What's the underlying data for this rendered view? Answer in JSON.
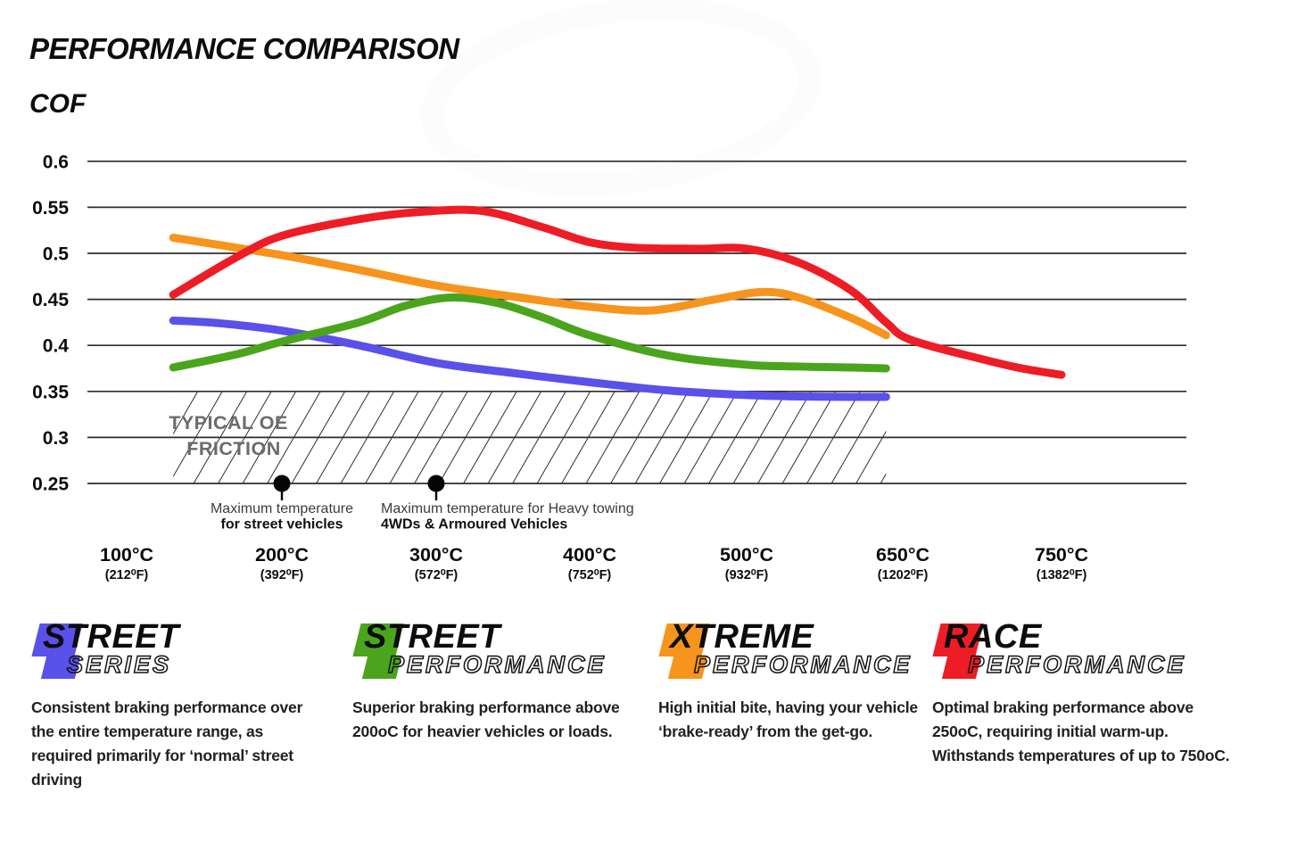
{
  "page": {
    "title": "PERFORMANCE COMPARISON",
    "y_axis_title": "COF"
  },
  "chart_data": {
    "type": "line",
    "title": "PERFORMANCE COMPARISON",
    "ylabel": "COF",
    "ylim": [
      0.25,
      0.6
    ],
    "grid": "horizontal",
    "y_ticks": [
      "0.6",
      "0.55",
      "0.5",
      "0.45",
      "0.4",
      "0.35",
      "0.3",
      "0.25"
    ],
    "y_tick_values": [
      0.6,
      0.55,
      0.5,
      0.45,
      0.4,
      0.35,
      0.3,
      0.25
    ],
    "x_ticks": [
      {
        "t": 100,
        "celsius": "100°C",
        "fahrenheit": "(212⁰F)"
      },
      {
        "t": 200,
        "celsius": "200°C",
        "fahrenheit": "(392⁰F)"
      },
      {
        "t": 300,
        "celsius": "300°C",
        "fahrenheit": "(572⁰F)"
      },
      {
        "t": 400,
        "celsius": "400°C",
        "fahrenheit": "(752⁰F)"
      },
      {
        "t": 500,
        "celsius": "500°C",
        "fahrenheit": "(932⁰F)"
      },
      {
        "t": 650,
        "celsius": "650°C",
        "fahrenheit": "(1202⁰F)"
      },
      {
        "t": 750,
        "celsius": "750°C",
        "fahrenheit": "(1382⁰F)"
      }
    ],
    "series": [
      {
        "name": "Street Series",
        "color": "#5951e9",
        "points": [
          [
            130,
            0.427
          ],
          [
            160,
            0.424
          ],
          [
            200,
            0.416
          ],
          [
            250,
            0.4
          ],
          [
            300,
            0.381
          ],
          [
            350,
            0.37
          ],
          [
            400,
            0.36
          ],
          [
            450,
            0.351
          ],
          [
            500,
            0.346
          ],
          [
            550,
            0.3445
          ],
          [
            600,
            0.344
          ],
          [
            634,
            0.344
          ]
        ]
      },
      {
        "name": "Street Performance",
        "color": "#4aa51c",
        "points": [
          [
            130,
            0.376
          ],
          [
            170,
            0.39
          ],
          [
            200,
            0.404
          ],
          [
            250,
            0.425
          ],
          [
            280,
            0.443
          ],
          [
            310,
            0.452
          ],
          [
            340,
            0.446
          ],
          [
            370,
            0.43
          ],
          [
            400,
            0.411
          ],
          [
            450,
            0.389
          ],
          [
            500,
            0.379
          ],
          [
            550,
            0.377
          ],
          [
            600,
            0.376
          ],
          [
            634,
            0.375
          ]
        ]
      },
      {
        "name": "Xtreme Performance",
        "color": "#f7941d",
        "points": [
          [
            130,
            0.517
          ],
          [
            200,
            0.498
          ],
          [
            250,
            0.482
          ],
          [
            300,
            0.465
          ],
          [
            350,
            0.453
          ],
          [
            400,
            0.442
          ],
          [
            440,
            0.438
          ],
          [
            480,
            0.45
          ],
          [
            515,
            0.458
          ],
          [
            550,
            0.452
          ],
          [
            600,
            0.43
          ],
          [
            634,
            0.411
          ]
        ]
      },
      {
        "name": "Race Performance",
        "color": "#ee1c25",
        "points": [
          [
            130,
            0.455
          ],
          [
            170,
            0.495
          ],
          [
            200,
            0.519
          ],
          [
            250,
            0.537
          ],
          [
            290,
            0.545
          ],
          [
            330,
            0.546
          ],
          [
            370,
            0.528
          ],
          [
            400,
            0.512
          ],
          [
            430,
            0.506
          ],
          [
            470,
            0.505
          ],
          [
            500,
            0.505
          ],
          [
            550,
            0.49
          ],
          [
            600,
            0.46
          ],
          [
            634,
            0.425
          ],
          [
            655,
            0.406
          ],
          [
            700,
            0.385
          ],
          [
            725,
            0.375
          ],
          [
            750,
            0.368
          ]
        ]
      }
    ],
    "oe_band": {
      "label_line1": "TYPICAL OE",
      "label_line2": "FRICTION",
      "t_range": [
        130,
        634
      ],
      "cof_range": [
        0.25,
        0.35
      ]
    },
    "annotations": [
      {
        "t": 200,
        "align": "center",
        "line1": "Maximum temperature",
        "line2": "for street vehicles"
      },
      {
        "t": 300,
        "align": "left",
        "line1": "Maximum temperature for Heavy towing",
        "line2": "4WDs & Armoured Vehicles"
      }
    ]
  },
  "legends": [
    {
      "line1": "STREET",
      "line2": "SERIES",
      "color": "#5951e9",
      "description": "Consistent braking performance over the entire temperature range, as required primarily for ‘normal’ street driving"
    },
    {
      "line1": "STREET",
      "line2": "PERFORMANCE",
      "color": "#4aa51c",
      "description": "Superior braking performance above 200oC for heavier vehicles or loads."
    },
    {
      "line1": "XTREME",
      "line2": "PERFORMANCE",
      "color": "#f7941d",
      "description": "High initial bite, having your vehicle ‘brake-ready’ from the get-go."
    },
    {
      "line1": "RACE",
      "line2": "PERFORMANCE",
      "color": "#ee1c25",
      "description": "Optimal braking performance above 250oC, requiring initial warm-up. Withstands temperatures of up to 750oC."
    }
  ]
}
